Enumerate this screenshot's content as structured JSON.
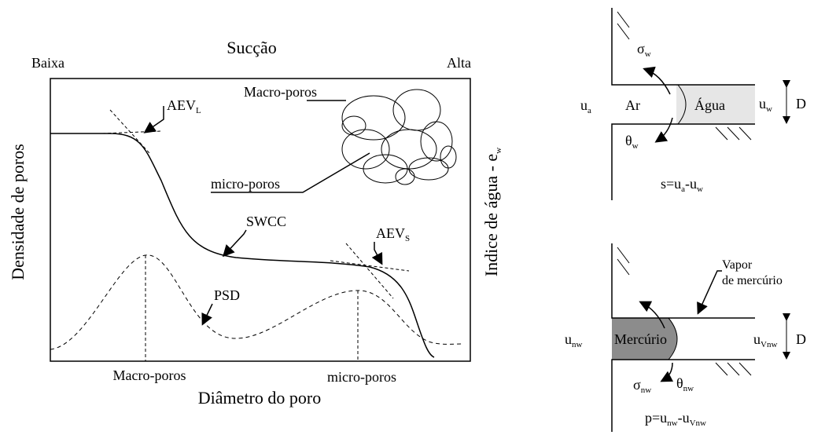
{
  "graph": {
    "top_label": "Sucção",
    "low": "Baixa",
    "high": "Alta",
    "aev_l": {
      "main": "AEV",
      "sub": "L"
    },
    "macro_label": "Macro-poros",
    "micro_label": "micro-poros",
    "swcc": "SWCC",
    "aev_s": {
      "main": "AEV",
      "sub": "S"
    },
    "psd": "PSD",
    "y_label": "Densidade de poros",
    "y2_label": {
      "main": "Indice de água - e",
      "sub": "w"
    },
    "x_macro": "Macro-poros",
    "x_micro": "micro-poros",
    "x_label": "Diâmetro do poro"
  },
  "water": {
    "sigma": {
      "main": "σ",
      "sub": "w"
    },
    "ua": {
      "main": "u",
      "sub": "a"
    },
    "air": "Ar",
    "liquid": "Água",
    "uw": {
      "main": "u",
      "sub": "w"
    },
    "d": "D",
    "theta": {
      "main": "θ",
      "sub": "w"
    },
    "formula": [
      "s=u",
      "a",
      "-u",
      "w"
    ]
  },
  "mercury": {
    "vapor": [
      "Vapor",
      "de mercúrio"
    ],
    "unw": {
      "main": "u",
      "sub": "nw"
    },
    "liquid": "Mercúrio",
    "uvnw": {
      "main": "u",
      "sub": "Vnw"
    },
    "d": "D",
    "sigma": {
      "main": "σ",
      "sub": "nw"
    },
    "theta": {
      "main": "θ",
      "sub": "nw"
    },
    "formula": [
      "p=u",
      "nw",
      "-u",
      "Vnw"
    ]
  }
}
